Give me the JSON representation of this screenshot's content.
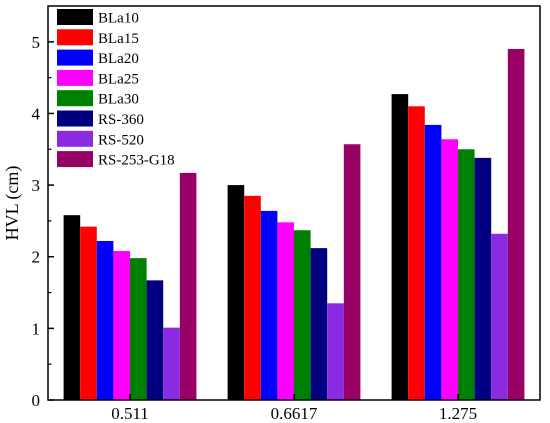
{
  "chart_data": {
    "type": "bar",
    "title": "",
    "xlabel": "",
    "ylabel": "HVL (cm)",
    "ylim": [
      0,
      5.5
    ],
    "yticks": [
      0,
      1,
      2,
      3,
      4,
      5
    ],
    "grid": false,
    "legend_position": "top-left",
    "categories": [
      "0.511",
      "0.6617",
      "1.275"
    ],
    "series": [
      {
        "name": "BLa10",
        "color": "#000000",
        "values": [
          2.58,
          3.0,
          4.27
        ]
      },
      {
        "name": "BLa15",
        "color": "#ff0000",
        "values": [
          2.42,
          2.85,
          4.1
        ]
      },
      {
        "name": "BLa20",
        "color": "#0000ff",
        "values": [
          2.22,
          2.64,
          3.84
        ]
      },
      {
        "name": "BLa25",
        "color": "#ff00ff",
        "values": [
          2.08,
          2.48,
          3.64
        ]
      },
      {
        "name": "BLa30",
        "color": "#008000",
        "values": [
          1.98,
          2.37,
          3.5
        ]
      },
      {
        "name": "RS-360",
        "color": "#000080",
        "values": [
          1.67,
          2.12,
          3.38
        ]
      },
      {
        "name": "RS-520",
        "color": "#8a2be2",
        "values": [
          1.01,
          1.35,
          2.32
        ]
      },
      {
        "name": "RS-253-G18",
        "color": "#990066",
        "values": [
          3.17,
          3.57,
          4.9
        ]
      }
    ]
  }
}
